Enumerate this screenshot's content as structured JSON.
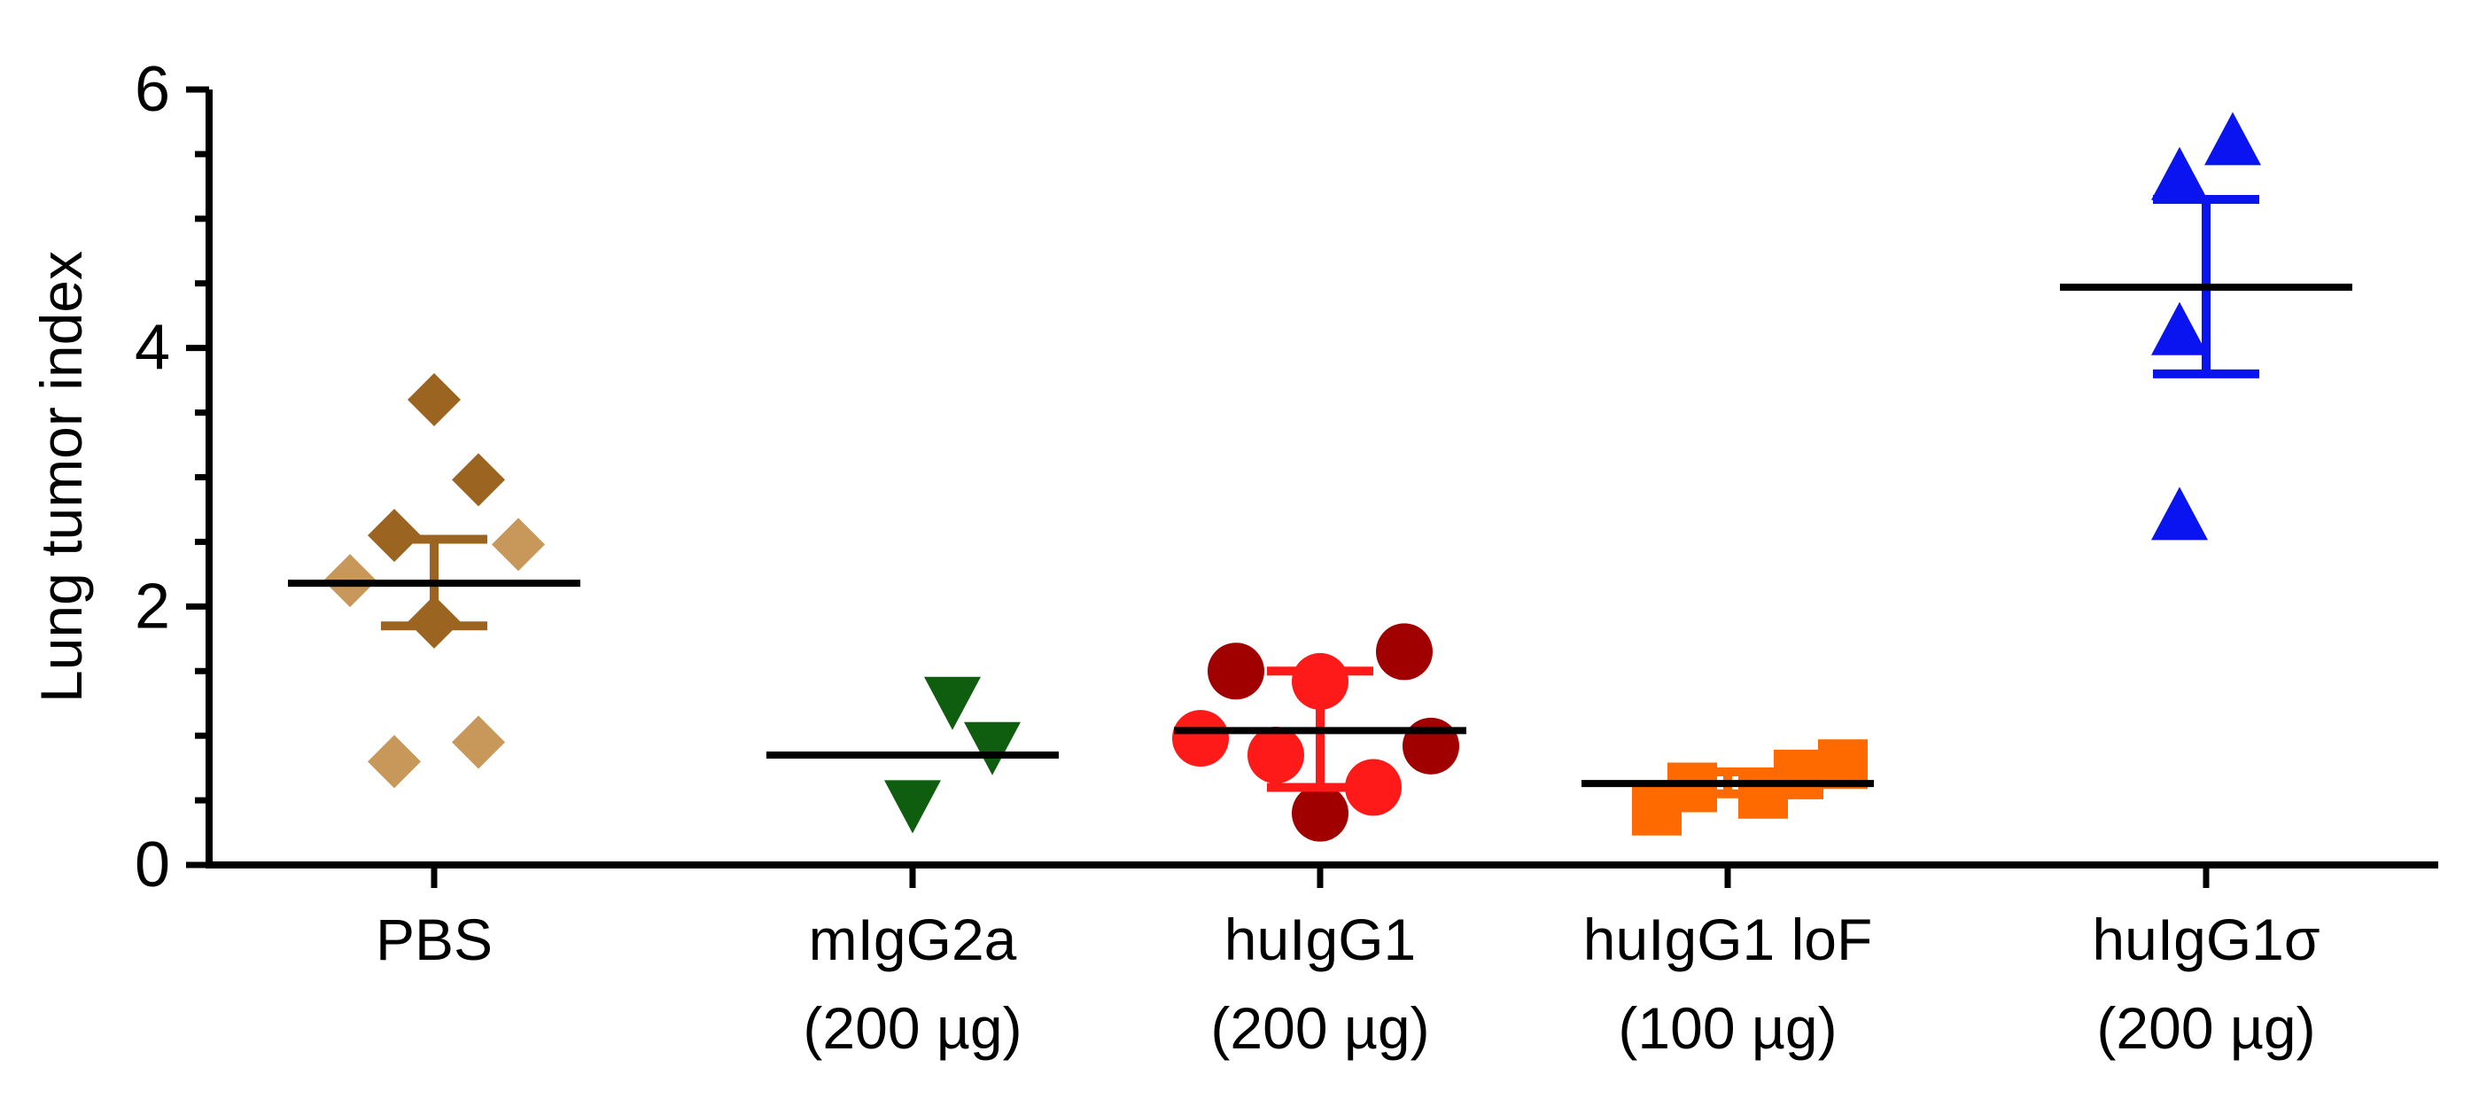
{
  "chart_data": {
    "type": "scatter",
    "ylabel": "Lung tumor index",
    "ylim": [
      0,
      6
    ],
    "yticks": [
      0,
      2,
      4,
      6
    ],
    "grid": false,
    "categories": [
      {
        "line1": "PBS",
        "line2": ""
      },
      {
        "line1": "mIgG2a",
        "line2": "(200 µg)"
      },
      {
        "line1": "huIgG1",
        "line2": "(200 µg)"
      },
      {
        "line1": "huIgG1 loF",
        "line2": "(100 µg)"
      },
      {
        "line1": "huIgG1σ",
        "line2": "(200 µg)"
      }
    ],
    "groups": [
      {
        "category": "PBS",
        "marker": "diamond",
        "mean": 2.18,
        "error_low": 1.85,
        "error_high": 2.52,
        "error_color": "#9B6420",
        "points": [
          {
            "y": 3.6,
            "color": "#9B6420"
          },
          {
            "y": 2.98,
            "color": "#9B6420"
          },
          {
            "y": 2.55,
            "color": "#9B6420"
          },
          {
            "y": 2.48,
            "color": "#C8975A"
          },
          {
            "y": 2.2,
            "color": "#C8975A"
          },
          {
            "y": 1.88,
            "color": "#9B6420"
          },
          {
            "y": 0.95,
            "color": "#C8975A"
          },
          {
            "y": 0.8,
            "color": "#C8975A"
          }
        ]
      },
      {
        "category": "mIgG2a",
        "marker": "triangle-down",
        "mean": 0.85,
        "points": [
          {
            "y": 1.25,
            "color": "#0F5E0F"
          },
          {
            "y": 0.9,
            "color": "#0F5E0F"
          },
          {
            "y": 0.45,
            "color": "#0F5E0F"
          }
        ]
      },
      {
        "category": "huIgG1",
        "marker": "circle",
        "mean": 1.04,
        "error_low": 0.6,
        "error_high": 1.5,
        "error_color": "#FF1A1A",
        "points": [
          {
            "y": 1.65,
            "color": "#A00000"
          },
          {
            "y": 1.5,
            "color": "#A00000"
          },
          {
            "y": 1.42,
            "color": "#FF1A1A"
          },
          {
            "y": 0.98,
            "color": "#FF1A1A"
          },
          {
            "y": 0.92,
            "color": "#A00000"
          },
          {
            "y": 0.85,
            "color": "#FF1A1A"
          },
          {
            "y": 0.6,
            "color": "#FF1A1A"
          },
          {
            "y": 0.4,
            "color": "#A00000"
          }
        ]
      },
      {
        "category": "huIgG1 loF",
        "marker": "square",
        "mean": 0.63,
        "error_low": 0.55,
        "error_high": 0.72,
        "error_color": "#FF6A00",
        "points": [
          {
            "y": 0.78,
            "color": "#FF6A00"
          },
          {
            "y": 0.7,
            "color": "#FF6A00"
          },
          {
            "y": 0.6,
            "color": "#FF6A00"
          },
          {
            "y": 0.55,
            "color": "#FF6A00"
          },
          {
            "y": 0.42,
            "color": "#FF6A00"
          }
        ]
      },
      {
        "category": "huIgG1σ",
        "marker": "triangle-up",
        "mean": 4.47,
        "error_low": 3.8,
        "error_high": 5.15,
        "error_color": "#0A14F0",
        "points": [
          {
            "y": 5.62,
            "color": "#0A14F0"
          },
          {
            "y": 5.35,
            "color": "#0A14F0"
          },
          {
            "y": 4.15,
            "color": "#0A14F0"
          },
          {
            "y": 2.72,
            "color": "#0A14F0"
          }
        ]
      }
    ]
  }
}
